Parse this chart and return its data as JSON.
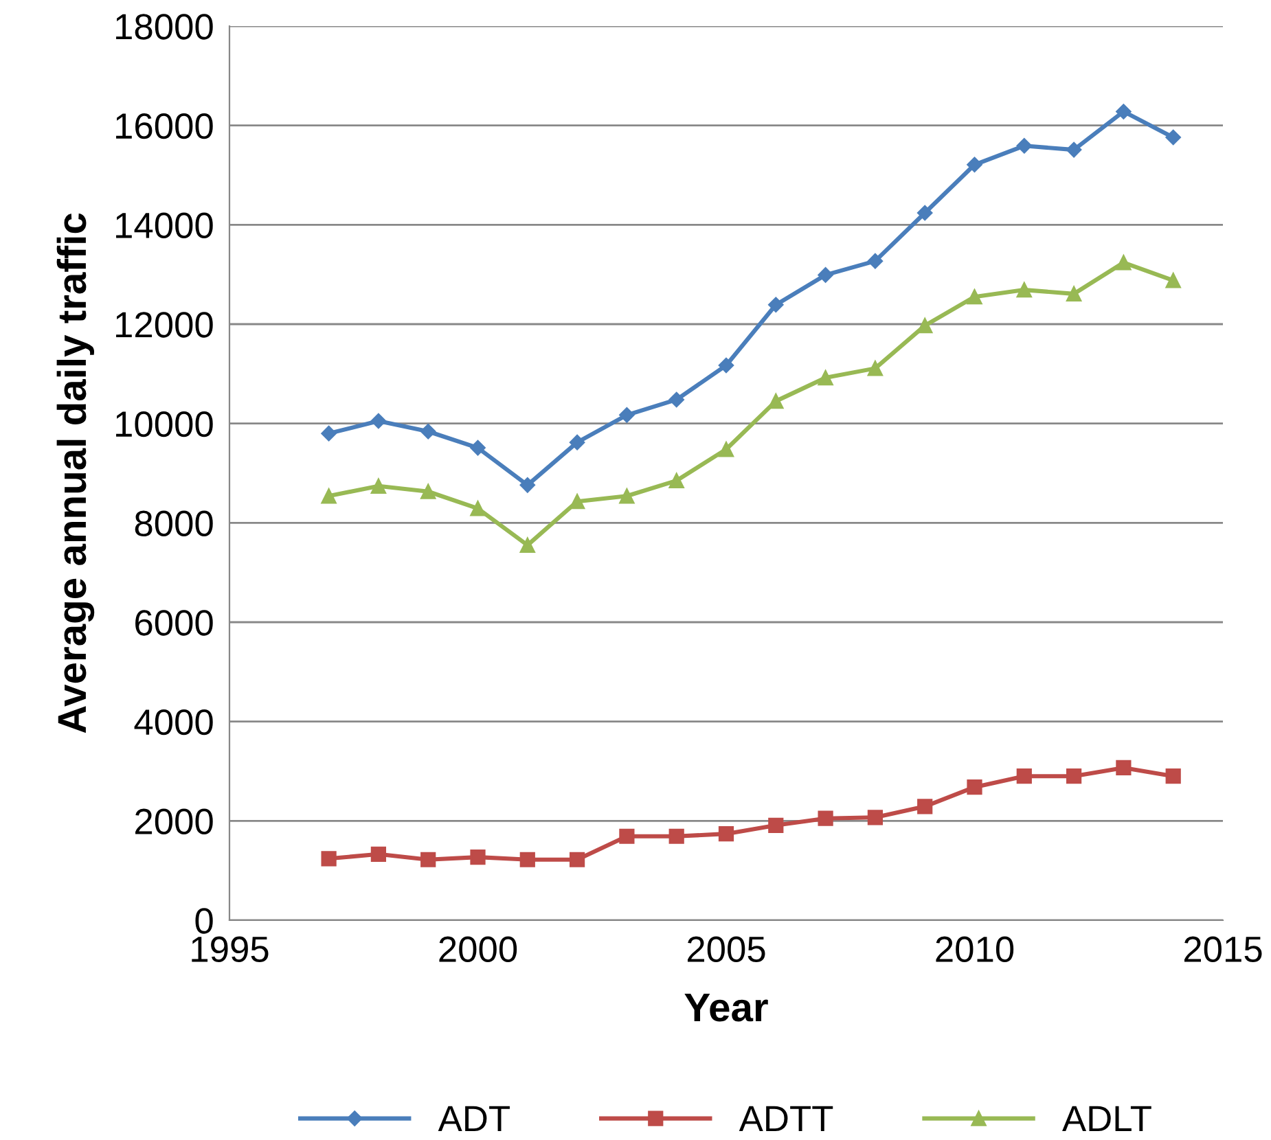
{
  "chart_data": {
    "type": "line",
    "xlabel": "Year",
    "ylabel": "Average annual daily traffic",
    "x": [
      1997,
      1998,
      1999,
      2000,
      2001,
      2002,
      2003,
      2004,
      2005,
      2006,
      2007,
      2008,
      2009,
      2010,
      2011,
      2012,
      2013,
      2014
    ],
    "series": [
      {
        "name": "ADT",
        "color": "#4a7ebb",
        "marker": "diamond",
        "values": [
          9800,
          10050,
          9840,
          9510,
          8760,
          9620,
          10170,
          10480,
          11170,
          12390,
          12990,
          13270,
          14240,
          15210,
          15590,
          15510,
          16280,
          15760
        ]
      },
      {
        "name": "ADTT",
        "color": "#be4b48",
        "marker": "square",
        "values": [
          1240,
          1330,
          1220,
          1270,
          1220,
          1220,
          1690,
          1690,
          1740,
          1910,
          2050,
          2070,
          2290,
          2680,
          2900,
          2900,
          3070,
          2900
        ]
      },
      {
        "name": "ADLT",
        "color": "#98b954",
        "marker": "triangle",
        "values": [
          8540,
          8740,
          8630,
          8290,
          7550,
          8430,
          8540,
          8850,
          9480,
          10450,
          10920,
          11110,
          11970,
          12550,
          12690,
          12610,
          13240,
          12880
        ]
      }
    ],
    "xlim": [
      1995,
      2015
    ],
    "xticks": [
      1995,
      2000,
      2005,
      2010,
      2015
    ],
    "ylim": [
      0,
      18000
    ],
    "yticks": [
      0,
      2000,
      4000,
      6000,
      8000,
      10000,
      12000,
      14000,
      16000,
      18000
    ],
    "grid": "y",
    "legend": "bottom",
    "line_style": "solid"
  }
}
